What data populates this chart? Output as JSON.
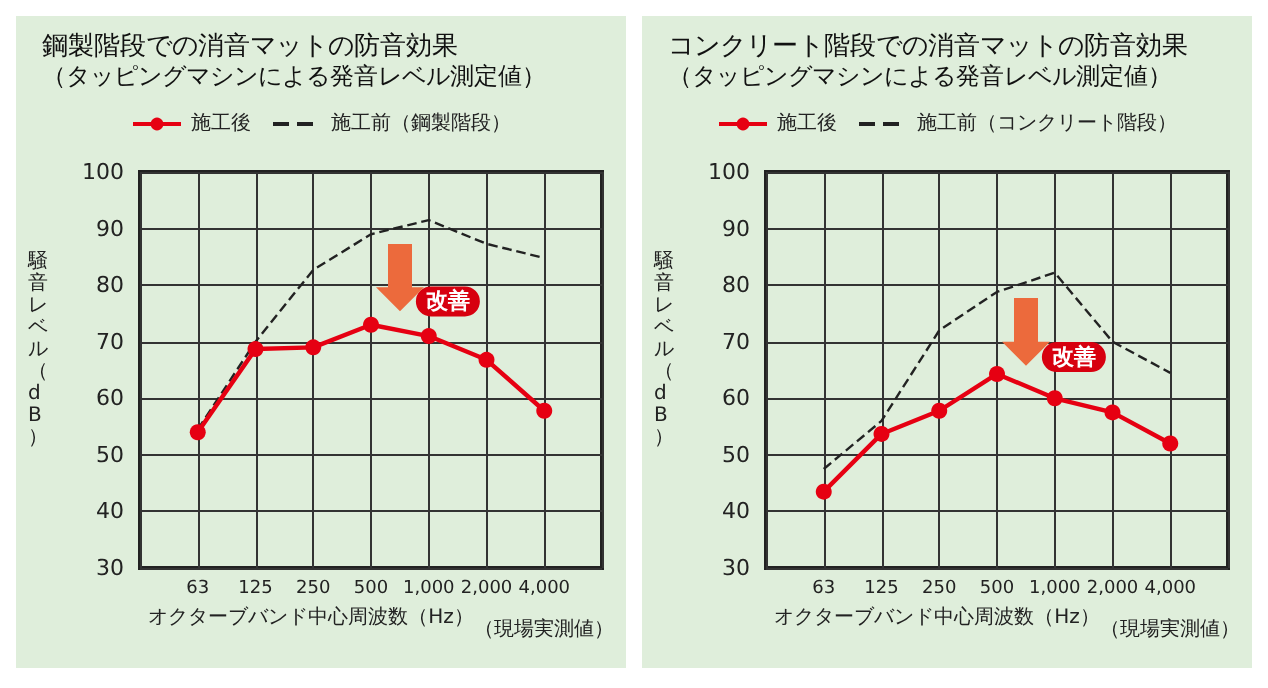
{
  "chart_data": [
    {
      "type": "line",
      "title": "鋼製階段での消音マットの防音効果",
      "subtitle": "（タッピングマシンによる発音レベル測定値）",
      "xlabel": "オクターブバンド中心周波数（Hz）",
      "ylabel": "騒音レベル（dB）",
      "categories": [
        "63",
        "125",
        "250",
        "500",
        "1,000",
        "2,000",
        "4,000"
      ],
      "series": [
        {
          "name": "施工後",
          "color": "#e60012",
          "marker": "circle",
          "line_style": "solid",
          "values": [
            54,
            68.7,
            69,
            73,
            71,
            66.8,
            57.8
          ]
        },
        {
          "name": "施工前（鋼製階段）",
          "color": "#222222",
          "marker": "none",
          "line_style": "dashed",
          "values": [
            54.5,
            70,
            82.7,
            89,
            91.5,
            87.3,
            84.8
          ]
        }
      ],
      "ylim": [
        30,
        100
      ],
      "yticks": [
        30,
        40,
        50,
        60,
        70,
        80,
        90,
        100
      ],
      "grid": true,
      "legend": "top",
      "annotations": [
        "改善",
        "（現場実測値）"
      ]
    },
    {
      "type": "line",
      "title": "コンクリート階段での消音マットの防音効果",
      "subtitle": "（タッピングマシンによる発音レベル測定値）",
      "xlabel": "オクターブバンド中心周波数（Hz）",
      "ylabel": "騒音レベル（dB）",
      "categories": [
        "63",
        "125",
        "250",
        "500",
        "1,000",
        "2,000",
        "4,000"
      ],
      "series": [
        {
          "name": "施工後",
          "color": "#e60012",
          "marker": "circle",
          "line_style": "solid",
          "values": [
            43.5,
            53.7,
            57.8,
            64.3,
            60,
            57.5,
            52
          ]
        },
        {
          "name": "施工前（コンクリート階段）",
          "color": "#222222",
          "marker": "none",
          "line_style": "dashed",
          "values": [
            47.5,
            56,
            72,
            78.8,
            82.2,
            70,
            64.5
          ]
        }
      ],
      "ylim": [
        30,
        100
      ],
      "yticks": [
        30,
        40,
        50,
        60,
        70,
        80,
        90,
        100
      ],
      "grid": true,
      "legend": "top",
      "annotations": [
        "改善",
        "（現場実測値）"
      ]
    }
  ]
}
